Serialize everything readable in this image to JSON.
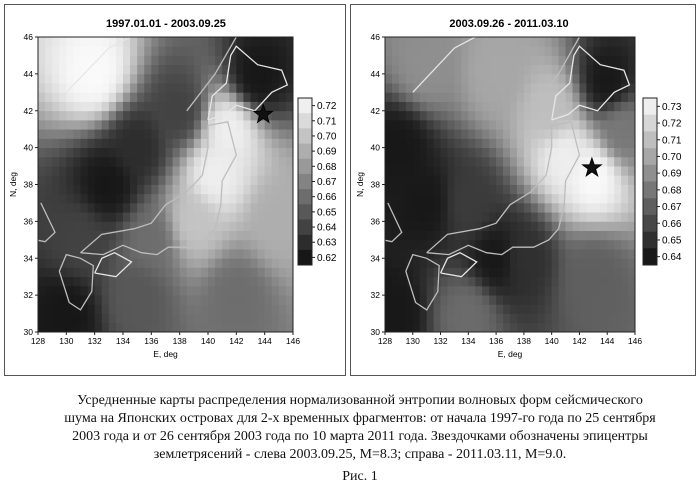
{
  "figure_label": "Рис. 1",
  "caption": "Усредненные карты распределения нормализованной энтропии волновых форм сейсмического шума на Японских островах для 2-х временных фрагментов: от начала 1997-го года по 25 сентября 2003 года и от 26 сентября 2003 года по 10 марта 2011 года. Звездочками обозначены эпицентры землетрясений - слева 2003.09.25, M=8.3; справа - 2011.03.11, M=9.0.",
  "chart_data": [
    {
      "type": "heatmap",
      "title": "1997.01.01 - 2003.09.25",
      "xlabel": "E, deg",
      "ylabel": "N, deg",
      "x_ticks": [
        "128",
        "130",
        "132",
        "134",
        "136",
        "138",
        "140",
        "142",
        "144",
        "146"
      ],
      "y_ticks": [
        "30",
        "32",
        "34",
        "36",
        "38",
        "40",
        "42",
        "44",
        "46"
      ],
      "xlim": [
        128,
        146
      ],
      "ylim": [
        30,
        46
      ],
      "colorbar_ticks": [
        "0.72",
        "0.71",
        "0.70",
        "0.69",
        "0.68",
        "0.67",
        "0.66",
        "0.65",
        "0.64",
        "0.63",
        "0.62"
      ],
      "colorbar_range": [
        0.615,
        0.725
      ],
      "epicenter": {
        "lon": 143.9,
        "lat": 41.8,
        "magnitude": 8.3,
        "date": "2003.09.25"
      },
      "field_centers": [
        [
          132,
          44,
          0.725
        ],
        [
          141.5,
          41,
          0.72
        ],
        [
          140.5,
          38.5,
          0.72
        ],
        [
          139,
          36,
          0.7
        ],
        [
          145,
          36,
          0.69
        ],
        [
          135,
          40,
          0.63
        ],
        [
          133,
          38,
          0.62
        ],
        [
          131,
          35,
          0.64
        ],
        [
          135,
          32,
          0.65
        ],
        [
          130,
          31,
          0.62
        ],
        [
          143.5,
          43.8,
          0.62
        ],
        [
          138,
          42,
          0.64
        ],
        [
          136,
          35,
          0.66
        ],
        [
          142,
          32,
          0.66
        ]
      ]
    },
    {
      "type": "heatmap",
      "title": "2003.09.26 - 2011.03.10",
      "xlabel": "E, deg",
      "ylabel": "N, deg",
      "x_ticks": [
        "128",
        "130",
        "132",
        "134",
        "136",
        "138",
        "140",
        "142",
        "144",
        "146"
      ],
      "y_ticks": [
        "30",
        "32",
        "34",
        "36",
        "38",
        "40",
        "42",
        "44",
        "46"
      ],
      "xlim": [
        128,
        146
      ],
      "ylim": [
        30,
        46
      ],
      "colorbar_ticks": [
        "0.73",
        "0.72",
        "0.71",
        "0.70",
        "0.69",
        "0.68",
        "0.67",
        "0.66",
        "0.65",
        "0.64"
      ],
      "colorbar_range": [
        0.635,
        0.735
      ],
      "epicenter": {
        "lon": 142.9,
        "lat": 38.9,
        "magnitude": 9.0,
        "date": "2011.03.11"
      },
      "field_centers": [
        [
          143,
          38.5,
          0.735
        ],
        [
          141,
          39.5,
          0.73
        ],
        [
          140,
          42,
          0.71
        ],
        [
          136,
          44,
          0.7
        ],
        [
          131,
          44.5,
          0.69
        ],
        [
          129,
          40,
          0.64
        ],
        [
          131,
          37,
          0.64
        ],
        [
          134,
          37,
          0.655
        ],
        [
          136,
          34,
          0.64
        ],
        [
          138,
          34,
          0.65
        ],
        [
          134,
          31,
          0.675
        ],
        [
          143,
          33,
          0.67
        ],
        [
          145,
          41,
          0.68
        ],
        [
          128.5,
          31,
          0.64
        ],
        [
          144,
          43.5,
          0.64
        ]
      ]
    }
  ]
}
